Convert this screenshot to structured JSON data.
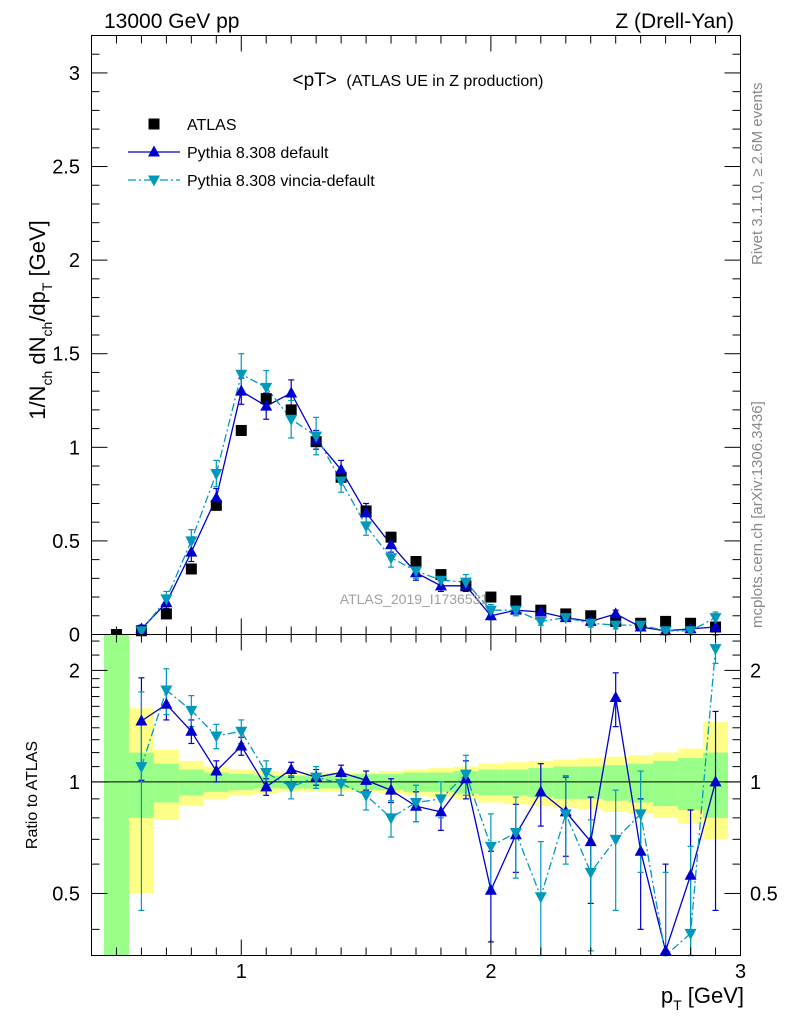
{
  "header": {
    "left": "13000 GeV pp",
    "right": "Z (Drell-Yan)"
  },
  "side_labels": {
    "rivet": "Rivet 3.1.10, ≥ 2.6M events",
    "source": "mcplots.cern.ch [arXiv:1306.3436]"
  },
  "watermark": "ATLAS_2019_I1736531",
  "chart_data": [
    {
      "panel": "main",
      "type": "scatter",
      "title": "<pT>",
      "subtitle": "(ATLAS UE in Z production)",
      "ylabel": "1/N",
      "ylabel_sub1": "ch",
      "ylabel_mid": " dN",
      "ylabel_sub2": "ch",
      "ylabel_tail": "/dp",
      "ylabel_sub3": "T",
      "ylabel_unit": " [GeV]",
      "xlim": [
        0.4,
        3.0
      ],
      "ylim": [
        0,
        3.2
      ],
      "y_ticks": [
        0,
        0.5,
        1,
        1.5,
        2,
        2.5,
        3
      ],
      "y_tick_labels": [
        "0",
        "0.5",
        "1",
        "1.5",
        "2",
        "2.5",
        "3"
      ],
      "legend_position": "top-left",
      "x": [
        0.5,
        0.6,
        0.7,
        0.8,
        0.9,
        1.0,
        1.1,
        1.2,
        1.3,
        1.4,
        1.5,
        1.6,
        1.7,
        1.8,
        1.9,
        2.0,
        2.1,
        2.2,
        2.3,
        2.4,
        2.5,
        2.6,
        2.7,
        2.8,
        2.9
      ],
      "series": [
        {
          "name": "ATLAS",
          "color": "#000000",
          "marker": "square",
          "values": [
            0.0,
            0.02,
            0.11,
            0.35,
            0.69,
            1.09,
            1.26,
            1.2,
            1.03,
            0.84,
            0.66,
            0.52,
            0.39,
            0.32,
            0.26,
            0.2,
            0.18,
            0.13,
            0.11,
            0.1,
            0.07,
            0.06,
            0.07,
            0.06,
            0.04
          ]
        },
        {
          "name": "Pythia 8.308 default",
          "color": "#0000cc",
          "marker": "triangle-up",
          "line": "solid",
          "values": [
            null,
            0.03,
            0.17,
            0.44,
            0.73,
            1.3,
            1.22,
            1.29,
            1.04,
            0.88,
            0.65,
            0.48,
            0.33,
            0.26,
            0.26,
            0.1,
            0.13,
            0.12,
            0.09,
            0.07,
            0.11,
            0.04,
            0.02,
            0.03,
            0.04
          ],
          "errors": [
            null,
            0.02,
            0.03,
            0.05,
            0.05,
            0.07,
            0.07,
            0.07,
            0.05,
            0.05,
            0.05,
            0.04,
            0.04,
            0.03,
            0.03,
            0.02,
            0.02,
            0.02,
            0.02,
            0.02,
            0.02,
            0.02,
            0.02,
            0.02,
            0.02
          ]
        },
        {
          "name": "Pythia 8.308 vincia-default",
          "color": "#0099bb",
          "marker": "triangle-down",
          "line": "dashdot",
          "values": [
            null,
            0.02,
            0.19,
            0.5,
            0.86,
            1.39,
            1.32,
            1.15,
            1.06,
            0.82,
            0.58,
            0.41,
            0.34,
            0.29,
            0.28,
            0.13,
            0.13,
            0.07,
            0.09,
            0.06,
            0.05,
            0.05,
            0.02,
            0.02,
            0.09
          ],
          "errors": [
            null,
            0.02,
            0.04,
            0.06,
            0.07,
            0.11,
            0.09,
            0.1,
            0.1,
            0.06,
            0.05,
            0.05,
            0.04,
            0.04,
            0.04,
            0.03,
            0.03,
            0.02,
            0.02,
            0.02,
            0.02,
            0.02,
            0.02,
            0.02,
            0.03
          ]
        }
      ]
    },
    {
      "panel": "ratio",
      "type": "scatter",
      "ylabel": "Ratio to ATLAS",
      "xlabel": "p",
      "xlabel_sub": "T",
      "xlabel_unit": " [GeV]",
      "xlim": [
        0.4,
        3.0
      ],
      "ylim": [
        0.34,
        2.5
      ],
      "x_ticks": [
        1,
        2,
        3
      ],
      "x_tick_labels": [
        "1",
        "2",
        "3"
      ],
      "y_ticks": [
        0.5,
        1,
        2
      ],
      "y_tick_labels": [
        "0.5",
        "1",
        "2"
      ],
      "bands": {
        "bin_edges": [
          0.45,
          0.55,
          0.65,
          0.75,
          0.85,
          0.95,
          1.05,
          1.15,
          1.25,
          1.35,
          1.45,
          1.55,
          1.65,
          1.75,
          1.85,
          1.95,
          2.05,
          2.15,
          2.25,
          2.35,
          2.45,
          2.55,
          2.65,
          2.75,
          2.85,
          2.95
        ],
        "stat_color": "#99ff88",
        "total_color": "#ffff88",
        "stat_lo": [
          0.3,
          0.8,
          0.88,
          0.92,
          0.94,
          0.95,
          0.96,
          0.96,
          0.96,
          0.96,
          0.95,
          0.95,
          0.94,
          0.94,
          0.93,
          0.92,
          0.92,
          0.91,
          0.9,
          0.9,
          0.89,
          0.88,
          0.86,
          0.84,
          0.8
        ],
        "stat_hi": [
          2.6,
          1.2,
          1.12,
          1.08,
          1.06,
          1.05,
          1.04,
          1.04,
          1.04,
          1.04,
          1.05,
          1.05,
          1.06,
          1.06,
          1.07,
          1.08,
          1.08,
          1.09,
          1.1,
          1.1,
          1.11,
          1.12,
          1.14,
          1.16,
          1.2
        ],
        "total_lo": [
          0.3,
          0.5,
          0.79,
          0.86,
          0.9,
          0.92,
          0.93,
          0.94,
          0.94,
          0.94,
          0.94,
          0.93,
          0.92,
          0.91,
          0.9,
          0.88,
          0.87,
          0.86,
          0.85,
          0.84,
          0.83,
          0.82,
          0.8,
          0.77,
          0.7
        ],
        "total_hi": [
          2.6,
          1.58,
          1.22,
          1.14,
          1.1,
          1.08,
          1.07,
          1.06,
          1.06,
          1.06,
          1.06,
          1.07,
          1.08,
          1.09,
          1.1,
          1.12,
          1.13,
          1.14,
          1.15,
          1.16,
          1.17,
          1.18,
          1.2,
          1.23,
          1.45
        ]
      },
      "x": [
        0.6,
        0.7,
        0.8,
        0.9,
        1.0,
        1.1,
        1.2,
        1.3,
        1.4,
        1.5,
        1.6,
        1.7,
        1.8,
        1.9,
        2.0,
        2.1,
        2.2,
        2.3,
        2.4,
        2.5,
        2.6,
        2.7,
        2.8,
        2.9
      ],
      "series": [
        {
          "name": "Pythia 8.308 default",
          "color": "#0000cc",
          "marker": "triangle-up",
          "line": "solid",
          "values": [
            1.46,
            1.62,
            1.37,
            1.07,
            1.25,
            0.97,
            1.08,
            1.03,
            1.06,
            1.01,
            0.95,
            0.86,
            0.83,
            1.02,
            0.51,
            0.72,
            0.94,
            0.83,
            0.69,
            1.69,
            0.65,
            0.35,
            0.56,
            1.0
          ],
          "errors": [
            0.45,
            0.15,
            0.1,
            0.07,
            0.07,
            0.05,
            0.05,
            0.05,
            0.05,
            0.06,
            0.07,
            0.08,
            0.09,
            0.12,
            0.14,
            0.15,
            0.18,
            0.2,
            0.22,
            0.28,
            0.25,
            0.25,
            0.28,
            0.55
          ]
        },
        {
          "name": "Pythia 8.308 vincia-default",
          "color": "#0099bb",
          "marker": "triangle-down",
          "line": "dashdot",
          "values": [
            1.1,
            1.77,
            1.56,
            1.33,
            1.37,
            1.06,
            0.97,
            1.03,
            0.99,
            0.92,
            0.8,
            0.88,
            0.9,
            1.05,
            0.67,
            0.73,
            0.49,
            0.82,
            0.57,
            0.7,
            0.82,
            0.32,
            0.39,
            2.29
          ],
          "errors": [
            0.65,
            0.25,
            0.15,
            0.1,
            0.1,
            0.08,
            0.07,
            0.07,
            0.07,
            0.08,
            0.09,
            0.1,
            0.1,
            0.13,
            0.15,
            0.18,
            0.2,
            0.22,
            0.22,
            0.25,
            0.25,
            0.25,
            0.28,
            0.2
          ]
        }
      ]
    }
  ]
}
